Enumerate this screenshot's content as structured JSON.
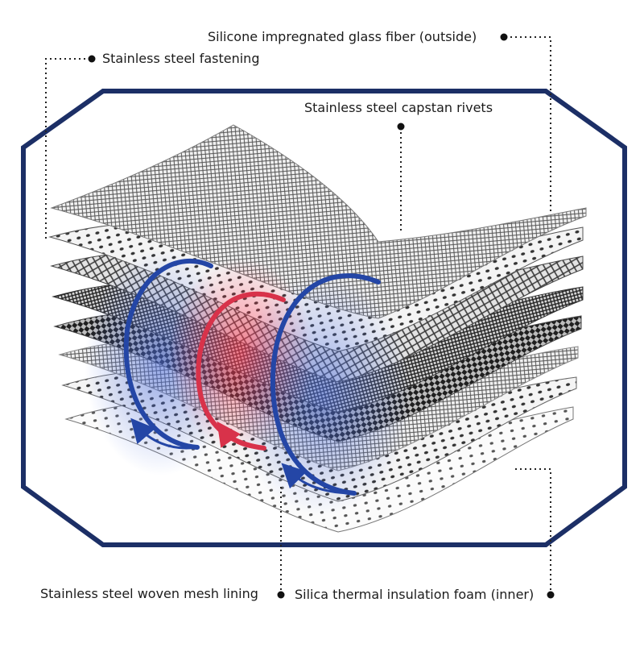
{
  "labels": {
    "outside": "Silicone impregnated glass fiber (outside)",
    "fastening": "Stainless steel fastening",
    "rivets": "Stainless steel capstan rivets",
    "mesh_lining": "Stainless steel woven mesh lining",
    "foam": "Silica thermal insulation foam (inner)"
  },
  "colors": {
    "frame": "#1c2f66",
    "blue_arrow": "#2446a6",
    "red_arrow": "#d8324a",
    "leader": "#222222"
  },
  "icons": [
    "octagon-frame",
    "layer-stack",
    "circular-arrow-blue",
    "circular-arrow-red"
  ]
}
